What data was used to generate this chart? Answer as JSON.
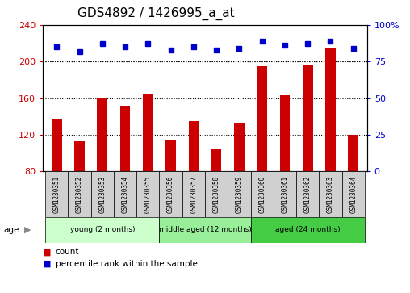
{
  "title": "GDS4892 / 1426995_a_at",
  "samples": [
    "GSM1230351",
    "GSM1230352",
    "GSM1230353",
    "GSM1230354",
    "GSM1230355",
    "GSM1230356",
    "GSM1230357",
    "GSM1230358",
    "GSM1230359",
    "GSM1230360",
    "GSM1230361",
    "GSM1230362",
    "GSM1230363",
    "GSM1230364"
  ],
  "counts": [
    137,
    113,
    160,
    152,
    165,
    115,
    135,
    105,
    132,
    195,
    163,
    196,
    215,
    120
  ],
  "percentile": [
    85,
    82,
    87,
    85,
    87,
    83,
    85,
    83,
    84,
    89,
    86,
    87,
    89,
    84
  ],
  "ylim_left": [
    80,
    240
  ],
  "ylim_right": [
    0,
    100
  ],
  "yticks_left": [
    80,
    120,
    160,
    200,
    240
  ],
  "yticks_right": [
    0,
    25,
    50,
    75,
    100
  ],
  "groups": [
    {
      "label": "young (2 months)",
      "start": 0,
      "end": 5,
      "color": "#ccffcc"
    },
    {
      "label": "middle aged (12 months)",
      "start": 5,
      "end": 9,
      "color": "#99ee99"
    },
    {
      "label": "aged (24 months)",
      "start": 9,
      "end": 14,
      "color": "#44cc44"
    }
  ],
  "bar_color": "#cc0000",
  "dot_color": "#0000cc",
  "grid_color": "#000000",
  "title_fontsize": 11,
  "axis_label_color_left": "#cc0000",
  "axis_label_color_right": "#0000cc",
  "age_label": "age",
  "legend_count": "count",
  "legend_percentile": "percentile rank within the sample",
  "background_color": "#ffffff",
  "sample_box_color": "#d0d0d0",
  "bar_width": 0.45
}
